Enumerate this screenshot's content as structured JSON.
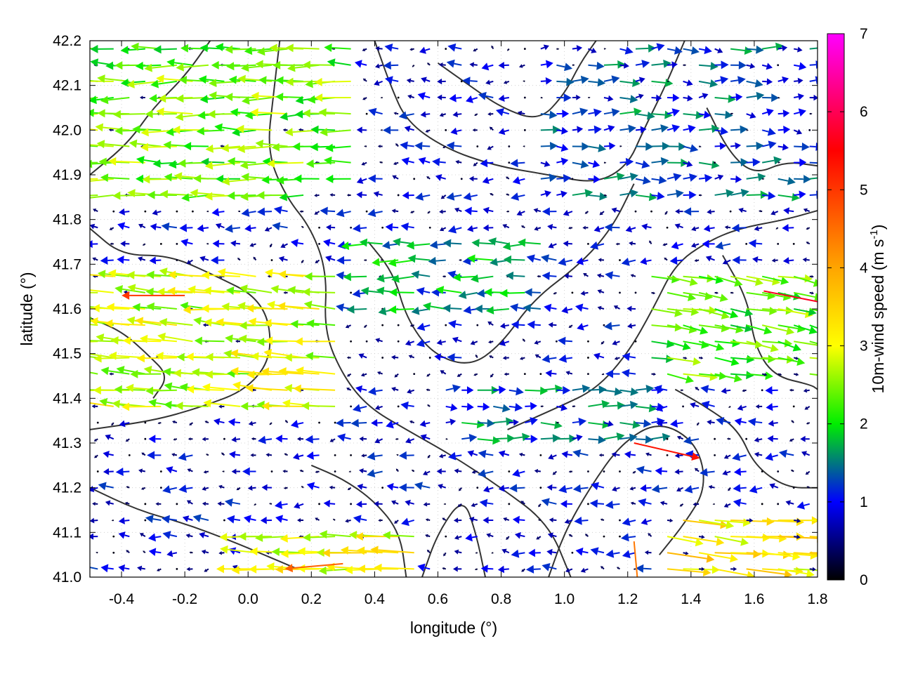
{
  "chart_data": {
    "type": "vector-field",
    "title": "",
    "xlabel": "longitude (°)",
    "ylabel": "latitude (°)",
    "xlim": [
      -0.5,
      1.8
    ],
    "ylim": [
      41.0,
      42.2
    ],
    "xticks": [
      "-0.4",
      "-0.2",
      "0.0",
      "0.2",
      "0.4",
      "0.6",
      "0.8",
      "1.0",
      "1.2",
      "1.4",
      "1.6",
      "1.8"
    ],
    "xtick_values": [
      -0.4,
      -0.2,
      0.0,
      0.2,
      0.4,
      0.6,
      0.8,
      1.0,
      1.2,
      1.4,
      1.6,
      1.8
    ],
    "yticks": [
      "41.0",
      "41.1",
      "41.2",
      "41.3",
      "41.4",
      "41.5",
      "41.6",
      "41.7",
      "41.8",
      "41.9",
      "42.0",
      "42.1",
      "42.2"
    ],
    "ytick_values": [
      41.0,
      41.1,
      41.2,
      41.3,
      41.4,
      41.5,
      41.6,
      41.7,
      41.8,
      41.9,
      42.0,
      42.1,
      42.2
    ],
    "grid": true,
    "colorbar": {
      "label_main": "10m-wind speed (m s",
      "label_sup": "-1",
      "label_end": ")",
      "range": [
        0,
        7
      ],
      "ticks": [
        "0",
        "1",
        "2",
        "3",
        "4",
        "5",
        "6",
        "7"
      ],
      "tick_values": [
        0,
        1,
        2,
        3,
        4,
        5,
        6,
        7
      ],
      "stops": [
        {
          "v": 0.0,
          "color": "#000000"
        },
        {
          "v": 1.0,
          "color": "#0000ff"
        },
        {
          "v": 2.0,
          "color": "#00ee00"
        },
        {
          "v": 3.0,
          "color": "#ffff00"
        },
        {
          "v": 4.0,
          "color": "#ffa500"
        },
        {
          "v": 5.5,
          "color": "#ff0000"
        },
        {
          "v": 7.0,
          "color": "#ff00ff"
        }
      ]
    },
    "vector_regions": [
      {
        "lon": [
          -0.5,
          0.35
        ],
        "lat": [
          41.85,
          42.2
        ],
        "u": -2.4,
        "v": 0.0
      },
      {
        "lon": [
          0.05,
          0.3
        ],
        "lat": [
          41.9,
          42.1
        ],
        "u": -3.3,
        "v": -0.6
      },
      {
        "lon": [
          -0.5,
          0.3
        ],
        "lat": [
          41.35,
          41.7
        ],
        "u": -2.8,
        "v": 0.2
      },
      {
        "lon": [
          -0.5,
          -0.2
        ],
        "lat": [
          41.5,
          41.65
        ],
        "u": -4.2,
        "v": 0.1
      },
      {
        "lon": [
          0.35,
          0.95
        ],
        "lat": [
          41.6,
          41.75
        ],
        "u": -1.6,
        "v": 0.0
      },
      {
        "lon": [
          0.6,
          1.3
        ],
        "lat": [
          41.3,
          41.45
        ],
        "u": 1.3,
        "v": 0.0
      },
      {
        "lon": [
          1.25,
          1.8
        ],
        "lat": [
          41.45,
          41.7
        ],
        "u": 2.3,
        "v": -0.4
      },
      {
        "lon": [
          1.3,
          1.8
        ],
        "lat": [
          41.0,
          41.15
        ],
        "u": 3.2,
        "v": -0.3
      },
      {
        "lon": [
          0.0,
          0.55
        ],
        "lat": [
          41.0,
          41.12
        ],
        "u": -3.0,
        "v": 0.1
      },
      {
        "lon": [
          0.9,
          1.8
        ],
        "lat": [
          41.85,
          42.2
        ],
        "u": 1.2,
        "v": 0.0
      },
      {
        "lon": [
          -0.5,
          1.8
        ],
        "lat": [
          41.0,
          42.2
        ],
        "u": -0.7,
        "v": 0.0
      }
    ],
    "highlighted_vectors": [
      {
        "lon": 1.22,
        "lat": 41.3,
        "u": 5.2,
        "v": -1.2
      },
      {
        "lon": 1.63,
        "lat": 41.64,
        "u": 5.6,
        "v": -1.1
      },
      {
        "lon": -0.2,
        "lat": 41.63,
        "u": -5.0,
        "v": 0.0
      },
      {
        "lon": 0.3,
        "lat": 41.03,
        "u": -4.6,
        "v": -0.4
      },
      {
        "lon": 1.22,
        "lat": 41.08,
        "u": 0.4,
        "v": -4.4
      }
    ],
    "contour_lines": [
      [
        [
          -0.5,
          41.9
        ],
        [
          -0.38,
          41.97
        ],
        [
          -0.3,
          42.05
        ],
        [
          -0.2,
          42.12
        ],
        [
          -0.12,
          42.2
        ]
      ],
      [
        [
          -0.5,
          41.78
        ],
        [
          -0.4,
          41.72
        ],
        [
          -0.25,
          41.72
        ],
        [
          -0.12,
          41.68
        ],
        [
          0.05,
          41.62
        ],
        [
          0.08,
          41.5
        ],
        [
          0.0,
          41.42
        ],
        [
          -0.15,
          41.38
        ],
        [
          -0.3,
          41.35
        ],
        [
          -0.5,
          41.33
        ]
      ],
      [
        [
          0.1,
          42.2
        ],
        [
          0.08,
          42.08
        ],
        [
          0.06,
          41.95
        ],
        [
          0.12,
          41.85
        ],
        [
          0.2,
          41.78
        ],
        [
          0.25,
          41.68
        ],
        [
          0.24,
          41.55
        ],
        [
          0.3,
          41.45
        ],
        [
          0.38,
          41.38
        ],
        [
          0.5,
          41.33
        ],
        [
          0.65,
          41.27
        ],
        [
          0.8,
          41.2
        ],
        [
          0.95,
          41.12
        ],
        [
          1.02,
          41.0
        ]
      ],
      [
        [
          0.4,
          42.2
        ],
        [
          0.45,
          42.1
        ],
        [
          0.5,
          42.02
        ],
        [
          0.62,
          41.96
        ],
        [
          0.78,
          41.92
        ],
        [
          0.95,
          41.9
        ],
        [
          1.1,
          41.88
        ],
        [
          1.2,
          41.92
        ],
        [
          1.25,
          42.0
        ],
        [
          1.32,
          42.1
        ],
        [
          1.38,
          42.2
        ]
      ],
      [
        [
          0.38,
          41.75
        ],
        [
          0.46,
          41.68
        ],
        [
          0.5,
          41.58
        ],
        [
          0.58,
          41.5
        ],
        [
          0.7,
          41.47
        ],
        [
          0.8,
          41.52
        ],
        [
          0.9,
          41.62
        ],
        [
          1.05,
          41.7
        ],
        [
          1.15,
          41.78
        ],
        [
          1.22,
          41.88
        ]
      ],
      [
        [
          0.82,
          41.33
        ],
        [
          0.98,
          41.38
        ],
        [
          1.1,
          41.42
        ],
        [
          1.2,
          41.5
        ],
        [
          1.28,
          41.6
        ],
        [
          1.35,
          41.7
        ],
        [
          1.45,
          41.75
        ],
        [
          1.55,
          41.78
        ],
        [
          1.7,
          41.8
        ],
        [
          1.8,
          41.82
        ]
      ],
      [
        [
          1.35,
          41.42
        ],
        [
          1.45,
          41.38
        ],
        [
          1.55,
          41.33
        ],
        [
          1.6,
          41.25
        ],
        [
          1.7,
          41.2
        ],
        [
          1.8,
          41.2
        ]
      ],
      [
        [
          1.5,
          41.72
        ],
        [
          1.58,
          41.62
        ],
        [
          1.6,
          41.52
        ],
        [
          1.66,
          41.45
        ],
        [
          1.78,
          41.43
        ],
        [
          1.8,
          41.42
        ]
      ],
      [
        [
          0.95,
          41.0
        ],
        [
          1.0,
          41.1
        ],
        [
          1.08,
          41.2
        ],
        [
          1.18,
          41.3
        ],
        [
          1.3,
          41.35
        ],
        [
          1.42,
          41.3
        ],
        [
          1.45,
          41.2
        ],
        [
          1.38,
          41.12
        ],
        [
          1.3,
          41.05
        ]
      ],
      [
        [
          -0.5,
          41.2
        ],
        [
          -0.35,
          41.15
        ],
        [
          -0.2,
          41.12
        ],
        [
          -0.05,
          41.08
        ],
        [
          0.05,
          41.05
        ],
        [
          0.15,
          41.02
        ]
      ],
      [
        [
          0.2,
          41.25
        ],
        [
          0.3,
          41.22
        ],
        [
          0.4,
          41.17
        ],
        [
          0.48,
          41.1
        ],
        [
          0.5,
          41.0
        ]
      ],
      [
        [
          0.55,
          41.0
        ],
        [
          0.6,
          41.1
        ],
        [
          0.68,
          41.18
        ],
        [
          0.72,
          41.1
        ],
        [
          0.75,
          41.0
        ]
      ],
      [
        [
          -0.5,
          41.58
        ],
        [
          -0.4,
          41.55
        ],
        [
          -0.32,
          41.5
        ],
        [
          -0.25,
          41.45
        ],
        [
          -0.3,
          41.4
        ]
      ],
      [
        [
          0.6,
          42.15
        ],
        [
          0.7,
          42.1
        ],
        [
          0.8,
          42.05
        ],
        [
          0.92,
          42.02
        ],
        [
          1.0,
          42.08
        ],
        [
          1.05,
          42.15
        ],
        [
          1.1,
          42.2
        ]
      ],
      [
        [
          1.45,
          42.05
        ],
        [
          1.52,
          41.95
        ],
        [
          1.6,
          41.9
        ],
        [
          1.7,
          41.93
        ],
        [
          1.8,
          41.92
        ]
      ]
    ]
  }
}
